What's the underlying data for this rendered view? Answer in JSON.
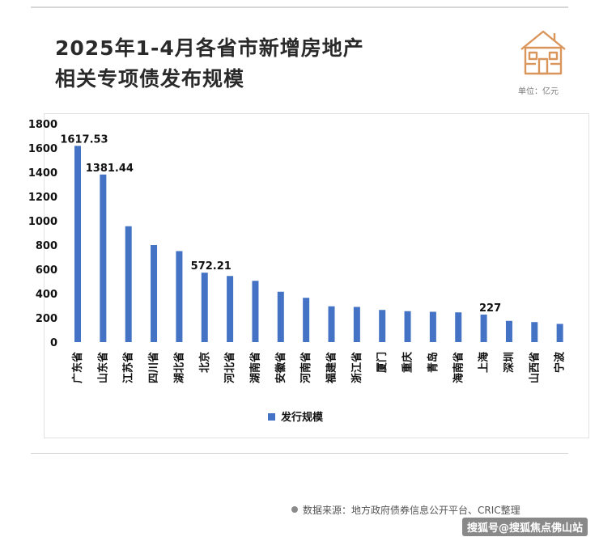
{
  "header": {
    "title_line1": "2025年1-4月各省市新增房地产",
    "title_line2": "相关专项债发布规模",
    "unit": "单位：亿元",
    "logo_icon": "house-icon"
  },
  "footer": {
    "source": "数据来源：地方政府债券信息公开平台、CRIC整理",
    "watermark": "搜狐号@搜狐焦点佛山站"
  },
  "colors": {
    "bar": "#4472C4",
    "axis_text": "#111111",
    "logo": "#D9955A"
  },
  "chart_data": {
    "type": "bar",
    "categories": [
      "广东省",
      "山东省",
      "江苏省",
      "四川省",
      "湖北省",
      "北京",
      "河北省",
      "湖南省",
      "安徽省",
      "河南省",
      "福建省",
      "浙江省",
      "厦门",
      "重庆",
      "青岛",
      "海南省",
      "上海",
      "深圳",
      "山西省",
      "宁波"
    ],
    "series": [
      {
        "name": "发行规模",
        "values": [
          1617.53,
          1381.44,
          955,
          800,
          750,
          572.21,
          545,
          505,
          415,
          365,
          295,
          290,
          265,
          255,
          250,
          245,
          227,
          175,
          165,
          150
        ]
      }
    ],
    "data_labels": [
      {
        "index": 0,
        "text": "1617.53"
      },
      {
        "index": 1,
        "text": "1381.44"
      },
      {
        "index": 5,
        "text": "572.21"
      },
      {
        "index": 16,
        "text": "227"
      }
    ],
    "yticks": [
      "0",
      "200",
      "400",
      "600",
      "800",
      "1000",
      "1200",
      "1400",
      "1600",
      "1800"
    ],
    "ylim": [
      0,
      1800
    ],
    "legend": {
      "label": "发行规模",
      "position": "bottom"
    },
    "grid": false
  }
}
